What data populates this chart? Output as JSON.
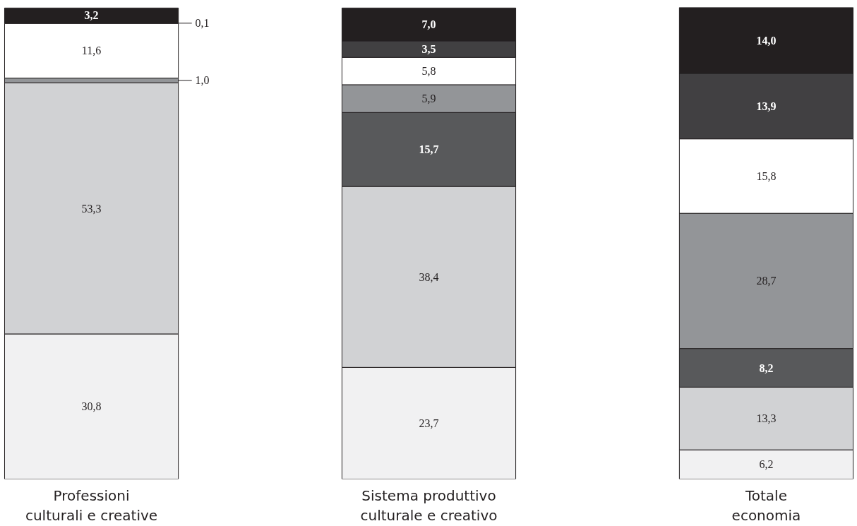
{
  "chart_data": {
    "type": "bar",
    "stacked": true,
    "categories": [
      "Professioni\nculturali e creative",
      "Sistema produttivo\nculturale e creativo",
      "Totale\neconomia"
    ],
    "series": [
      {
        "color": "#f1f1f2",
        "values": [
          30.8,
          23.7,
          6.2
        ],
        "value_labels": [
          "30,8",
          "23,7",
          "6,2"
        ]
      },
      {
        "color": "#d1d2d4",
        "values": [
          53.3,
          38.4,
          13.3
        ],
        "value_labels": [
          "53,3",
          "38,4",
          "13,3"
        ]
      },
      {
        "color": "#58595b",
        "values": [
          null,
          15.7,
          8.2
        ],
        "value_labels": [
          null,
          "15,7",
          "8,2"
        ]
      },
      {
        "color": "#939598",
        "values": [
          1.0,
          5.9,
          28.7
        ],
        "value_labels": [
          "1,0",
          "5,9",
          "28,7"
        ]
      },
      {
        "color": "#ffffff",
        "values": [
          11.6,
          5.8,
          15.8
        ],
        "value_labels": [
          "11,6",
          "5,8",
          "15,8"
        ]
      },
      {
        "color": "#414042",
        "values": [
          0.1,
          3.5,
          13.9
        ],
        "value_labels": [
          "0,1",
          "3,5",
          "13,9"
        ]
      },
      {
        "color": "#231f20",
        "values": [
          3.2,
          7.0,
          14.0
        ],
        "value_labels": [
          "3,2",
          "7,0",
          "14,0"
        ]
      }
    ]
  }
}
